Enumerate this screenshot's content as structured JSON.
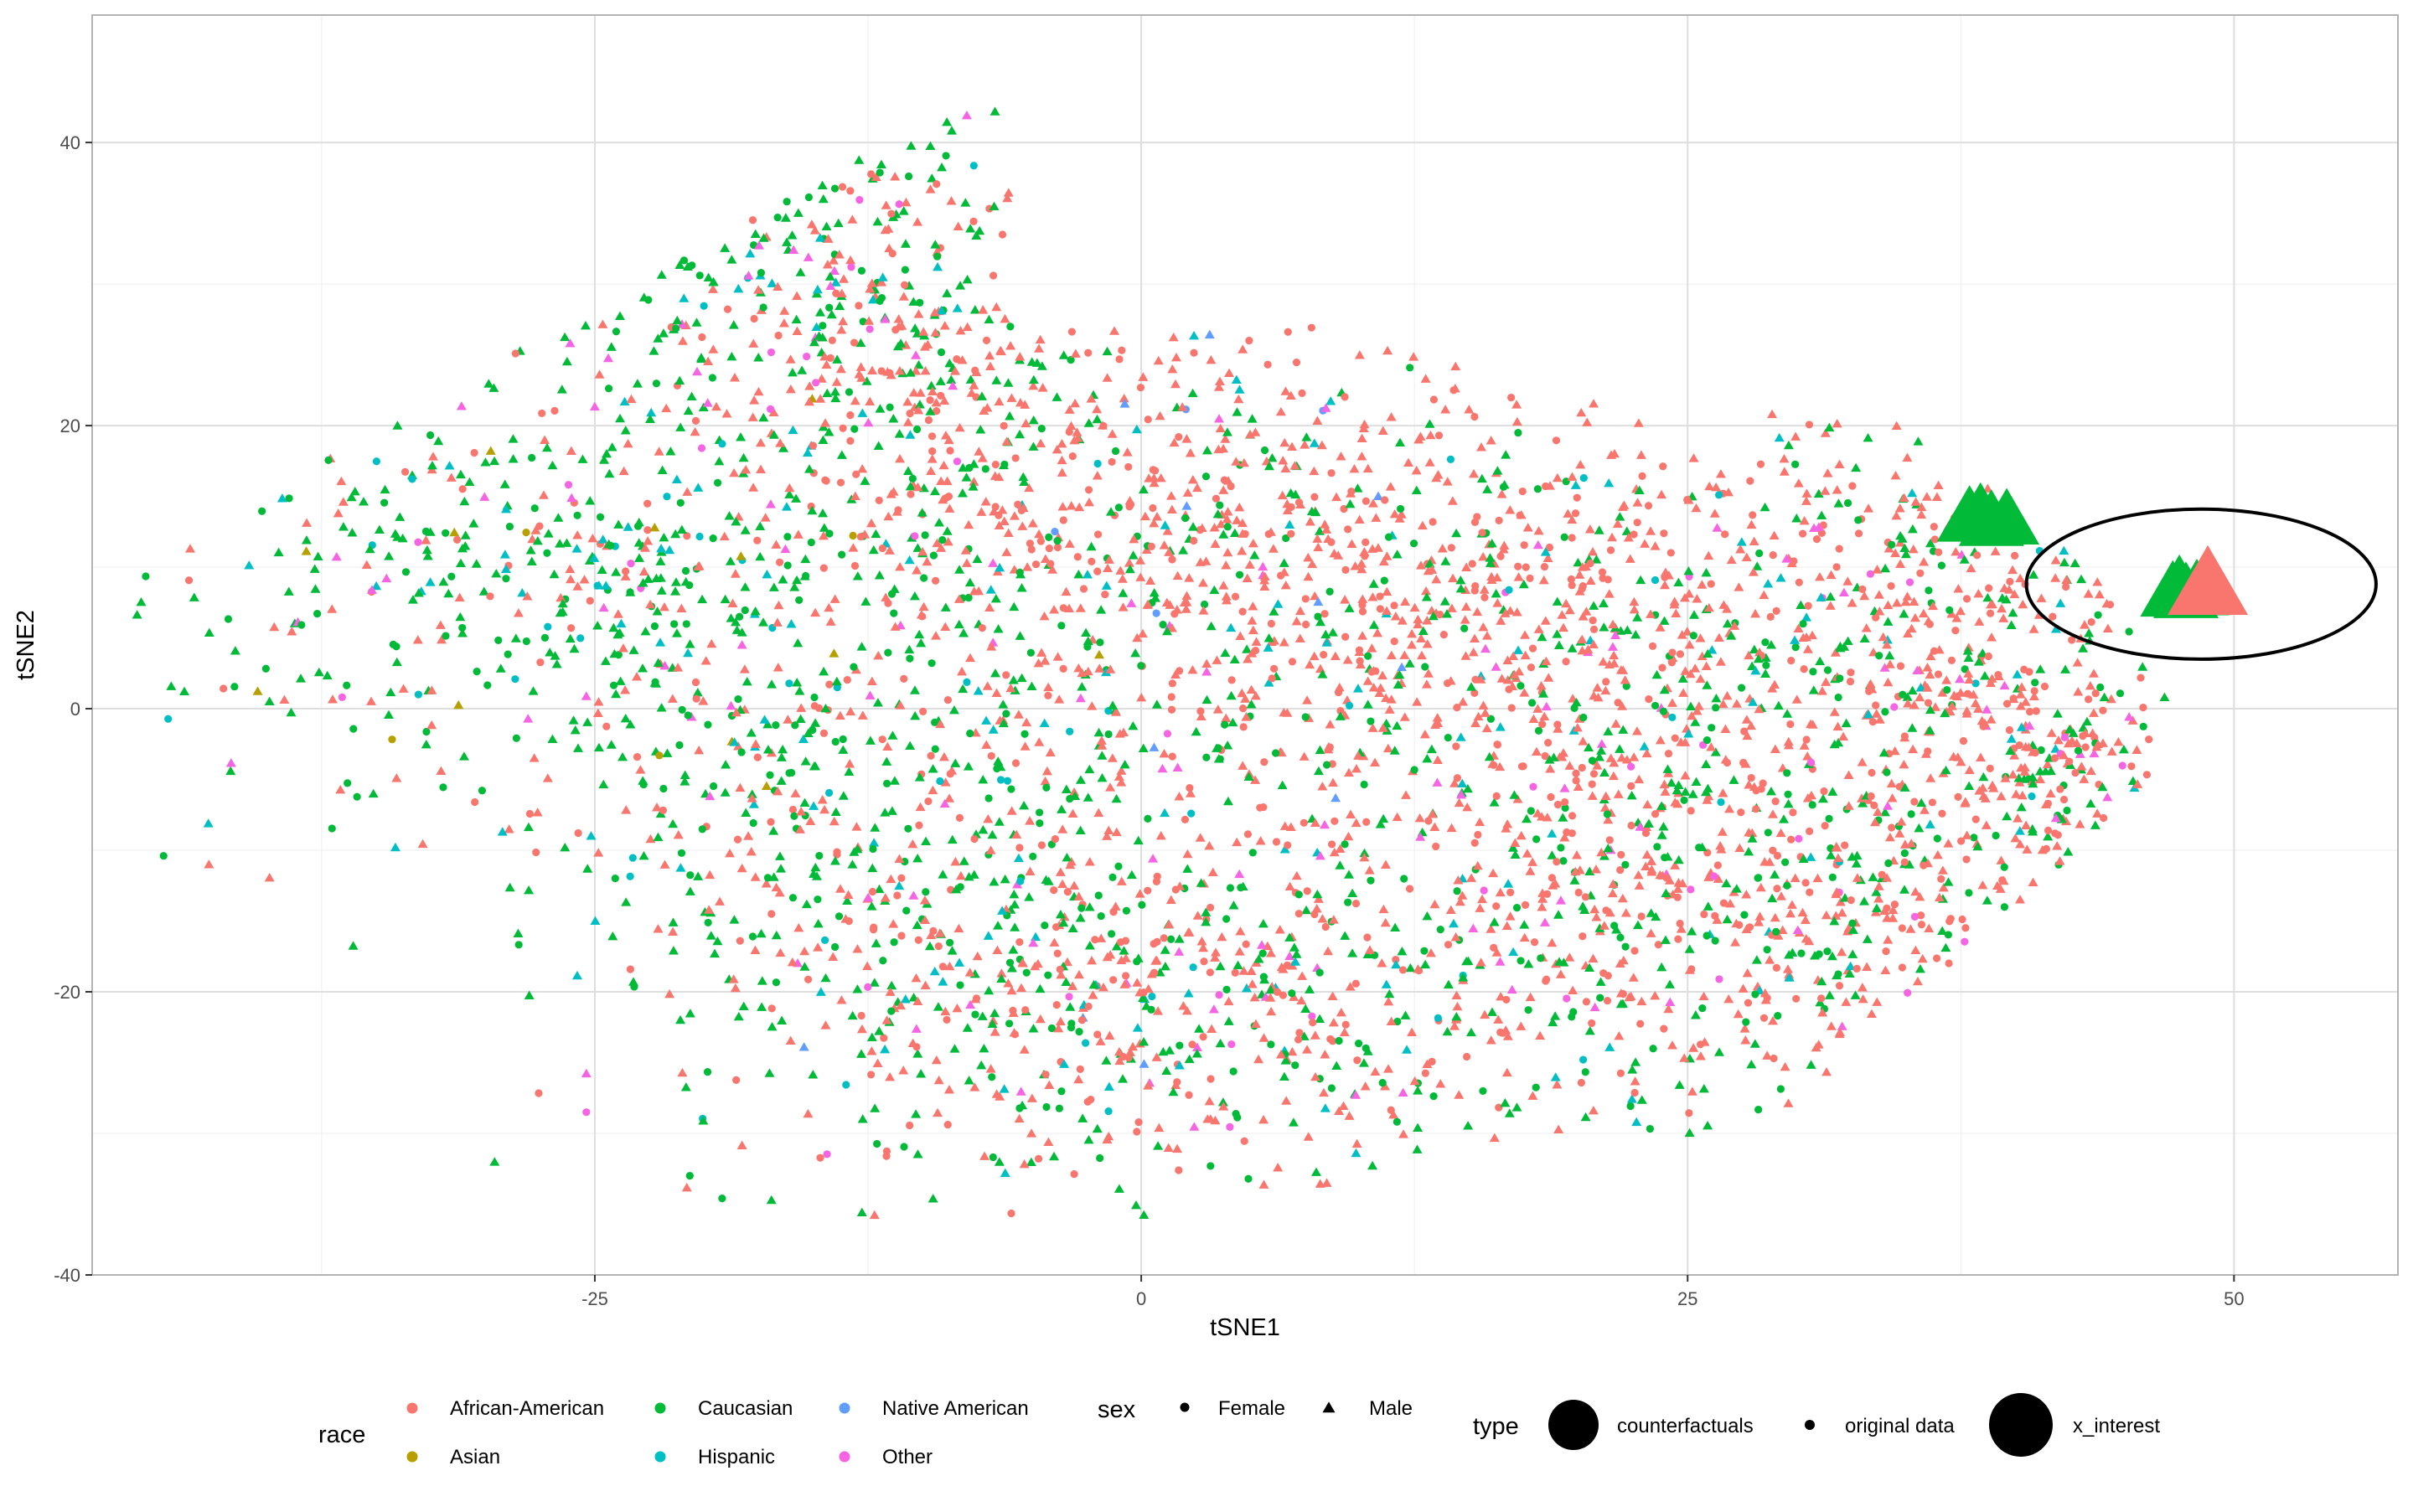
{
  "chart_data": {
    "type": "scatter",
    "title": "",
    "xlabel": "tSNE1",
    "ylabel": "tSNE2",
    "xlim": [
      -48,
      57.5
    ],
    "ylim": [
      -40,
      49
    ],
    "x_ticks": [
      -25,
      0,
      25,
      50
    ],
    "y_ticks": [
      -40,
      -20,
      0,
      20,
      40
    ],
    "x_tick_labels": [
      "-25",
      "0",
      "25",
      "50"
    ],
    "y_tick_labels": [
      "-40",
      "-20",
      "0",
      "20",
      "40"
    ],
    "grid": true,
    "legend_position": "bottom",
    "colors": {
      "African-American": "#F8766D",
      "Asian": "#B79F00",
      "Caucasian": "#00BA38",
      "Hispanic": "#00BFC4",
      "Native American": "#619CFF",
      "Other": "#F564E3"
    },
    "legends": {
      "race": {
        "title": "race",
        "entries": [
          "African-American",
          "Asian",
          "Caucasian",
          "Hispanic",
          "Native American",
          "Other"
        ]
      },
      "sex": {
        "title": "sex",
        "entries": [
          "Female",
          "Male"
        ]
      },
      "type": {
        "title": "type",
        "entries": [
          "counterfactuals",
          "original data",
          "x_interest"
        ]
      }
    },
    "annotation": {
      "shape": "ellipse",
      "cx": 48.5,
      "cy": 8.8,
      "rx": 8,
      "ry": 5.3
    },
    "clusters": [
      {
        "cx": -25,
        "cy": 10,
        "sx": 11,
        "sy": 10,
        "n": 620,
        "race_weights": {
          "African-American": 0.22,
          "Caucasian": 0.6,
          "Hispanic": 0.1,
          "Other": 0.06,
          "Asian": 0.02
        }
      },
      {
        "cx": -17,
        "cy": 33,
        "sx": 6,
        "sy": 6,
        "n": 200,
        "race_weights": {
          "African-American": 0.25,
          "Caucasian": 0.58,
          "Hispanic": 0.1,
          "Other": 0.07
        }
      },
      {
        "cx": -8,
        "cy": 20,
        "sx": 6,
        "sy": 7,
        "n": 260,
        "race_weights": {
          "African-American": 0.7,
          "Caucasian": 0.24,
          "Hispanic": 0.03,
          "Other": 0.03
        }
      },
      {
        "cx": 5,
        "cy": 10,
        "sx": 9,
        "sy": 9,
        "n": 620,
        "race_weights": {
          "African-American": 0.76,
          "Caucasian": 0.18,
          "Hispanic": 0.03,
          "Native American": 0.01,
          "Other": 0.02
        }
      },
      {
        "cx": 22,
        "cy": 5,
        "sx": 10,
        "sy": 8,
        "n": 700,
        "race_weights": {
          "African-American": 0.68,
          "Caucasian": 0.26,
          "Hispanic": 0.03,
          "Other": 0.03
        }
      },
      {
        "cx": -12,
        "cy": -10,
        "sx": 7,
        "sy": 9,
        "n": 360,
        "race_weights": {
          "African-American": 0.38,
          "Caucasian": 0.52,
          "Hispanic": 0.06,
          "Other": 0.04
        }
      },
      {
        "cx": 2,
        "cy": -20,
        "sx": 10,
        "sy": 8,
        "n": 700,
        "race_weights": {
          "African-American": 0.52,
          "Caucasian": 0.36,
          "Hispanic": 0.06,
          "Other": 0.05,
          "Native American": 0.01
        }
      },
      {
        "cx": 28,
        "cy": -14,
        "sx": 8,
        "sy": 7,
        "n": 560,
        "race_weights": {
          "African-American": 0.58,
          "Caucasian": 0.34,
          "Hispanic": 0.04,
          "Other": 0.04
        }
      },
      {
        "cx": 37,
        "cy": 5,
        "sx": 5,
        "sy": 8,
        "n": 300,
        "race_weights": {
          "African-American": 0.64,
          "Caucasian": 0.28,
          "Hispanic": 0.04,
          "Other": 0.04
        }
      },
      {
        "cx": 43,
        "cy": -5,
        "sx": 3,
        "sy": 4,
        "n": 120,
        "race_weights": {
          "African-American": 0.6,
          "Caucasian": 0.32,
          "Other": 0.08
        }
      }
    ],
    "counterfactuals": [
      {
        "x": 37.9,
        "y": 13.4
      },
      {
        "x": 38.9,
        "y": 13.1
      },
      {
        "x": 39.6,
        "y": 13.2
      },
      {
        "x": 38.4,
        "y": 13.6
      },
      {
        "x": 47.2,
        "y": 8.1
      },
      {
        "x": 47.8,
        "y": 8.0
      },
      {
        "x": 48.3,
        "y": 8.2
      },
      {
        "x": 47.5,
        "y": 8.5
      }
    ],
    "x_interest": {
      "x": 48.8,
      "y": 8.6,
      "race": "African-American",
      "sex": "Male"
    }
  }
}
